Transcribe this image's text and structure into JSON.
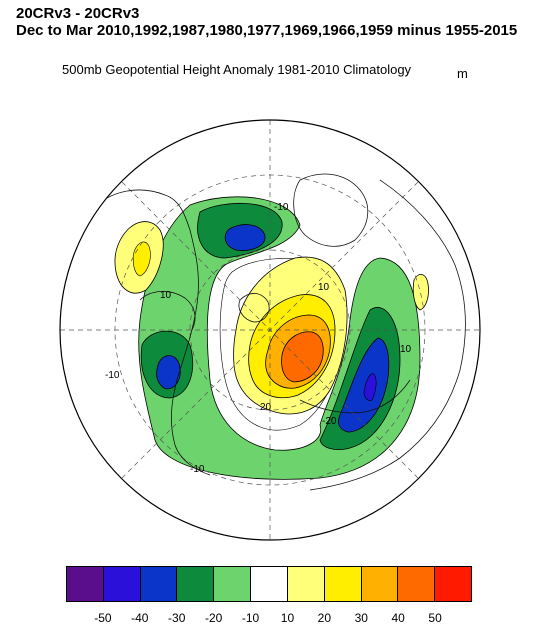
{
  "titles": {
    "line1": "20CRv3 - 20CRv3",
    "line2": "Dec to Mar 2010,1992,1987,1980,1977,1969,1966,1959 minus 1955-2015"
  },
  "subtitle": "500mb Geopotential Height Anomaly  1981-2010 Climatology",
  "units": "m",
  "map": {
    "projection": "north polar stereographic",
    "contour_labels": [
      "-10",
      "10",
      "10",
      "10",
      "20",
      "-10",
      "-10",
      "-20"
    ]
  },
  "colorbar": {
    "colors": [
      "#5b0e8c",
      "#2a10d8",
      "#0a35c8",
      "#0e8a3c",
      "#6dd46d",
      "#ffffff",
      "#ffff7a",
      "#ffee00",
      "#ffb000",
      "#ff6a00",
      "#ff1a00"
    ],
    "labels": [
      "-50",
      "-40",
      "-30",
      "-20",
      "-10",
      "10",
      "20",
      "30",
      "40",
      "50"
    ]
  }
}
